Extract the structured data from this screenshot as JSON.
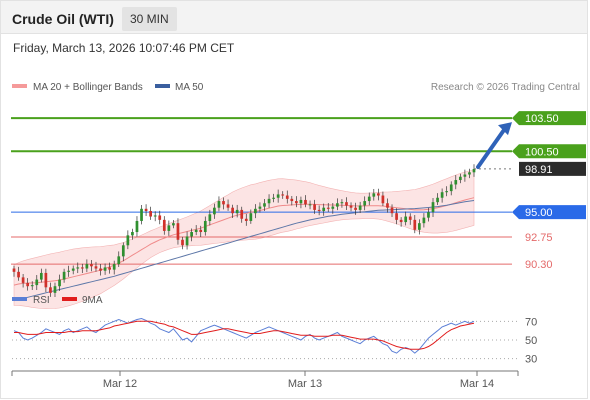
{
  "header": {
    "title": "Crude Oil (WTI)",
    "timeframe": "30 MIN"
  },
  "datetime": "Friday, March 13, 2026 10:07:46 PM CET",
  "legend": {
    "items": [
      {
        "label": "MA 20 + Bollinger Bands",
        "color": "#f59a9a"
      },
      {
        "label": "MA 50",
        "color": "#3a5f9f"
      }
    ],
    "source": "Research © 2026 Trading Central"
  },
  "rsi_legend": {
    "items": [
      {
        "label": "RSI",
        "color": "#5b7fd6"
      },
      {
        "label": "9MA",
        "color": "#e11d1d"
      }
    ]
  },
  "colors": {
    "resistance": "#4aa11c",
    "pivot": "#2a6ae8",
    "support": "#e46a6a",
    "arrow": "#2f62b8",
    "price_tag": "#2b2b2b",
    "candle_up": "#2f8f2f",
    "candle_down": "#d0302a"
  },
  "chart_data": [
    {
      "type": "candlestick",
      "price_range": [
        88.5,
        105.5
      ],
      "x_ticks": [
        "Mar 12",
        "Mar 13",
        "Mar 14"
      ],
      "levels": [
        {
          "label": "103.50",
          "value": 103.5,
          "kind": "resistance"
        },
        {
          "label": "100.50",
          "value": 100.5,
          "kind": "resistance"
        },
        {
          "label": "95.00",
          "value": 95.0,
          "kind": "pivot"
        },
        {
          "label": "92.75",
          "value": 92.75,
          "kind": "support"
        },
        {
          "label": "90.30",
          "value": 90.3,
          "kind": "support"
        }
      ],
      "last_price": {
        "label": "98.91",
        "value": 98.91
      },
      "close": [
        89.6,
        89.1,
        88.6,
        88.3,
        88.4,
        88.9,
        89.5,
        88.2,
        87.7,
        88.3,
        88.9,
        89.6,
        89.7,
        89.9,
        90.0,
        89.9,
        90.3,
        90.1,
        89.9,
        89.7,
        90.0,
        89.8,
        90.3,
        91.0,
        92.0,
        92.9,
        93.2,
        94.2,
        95.3,
        95.1,
        94.6,
        94.7,
        94.3,
        93.3,
        93.8,
        94.0,
        92.5,
        92.0,
        92.8,
        93.2,
        93.4,
        93.2,
        94.2,
        94.8,
        95.4,
        96.0,
        95.7,
        95.4,
        94.9,
        95.2,
        94.4,
        94.2,
        94.9,
        95.3,
        95.5,
        95.8,
        96.2,
        96.3,
        96.6,
        96.5,
        96.2,
        96.0,
        95.8,
        96.1,
        95.7,
        95.7,
        95.2,
        95.1,
        95.4,
        95.3,
        95.5,
        95.8,
        95.9,
        95.6,
        95.4,
        95.2,
        95.6,
        96.0,
        96.4,
        96.7,
        96.5,
        95.8,
        95.4,
        94.9,
        94.3,
        94.1,
        94.6,
        94.3,
        93.4,
        94.0,
        94.5,
        95.0,
        95.9,
        96.3,
        96.8,
        96.9,
        97.5,
        97.9,
        98.2,
        98.4,
        98.6,
        98.9
      ],
      "ma20": [
        88.4,
        88.5,
        88.55,
        88.58,
        88.6,
        88.62,
        88.65,
        88.7,
        88.75,
        88.8,
        88.85,
        88.95,
        89.05,
        89.15,
        89.25,
        89.35,
        89.45,
        89.55,
        89.65,
        89.75,
        89.9,
        90.05,
        90.2,
        90.4,
        90.6,
        90.85,
        91.1,
        91.35,
        91.6,
        91.85,
        92.1,
        92.3,
        92.5,
        92.65,
        92.8,
        92.95,
        93.05,
        93.15,
        93.25,
        93.35,
        93.45,
        93.55,
        93.7,
        93.85,
        94.0,
        94.15,
        94.3,
        94.45,
        94.6,
        94.72,
        94.82,
        94.9,
        95.0,
        95.05,
        95.15,
        95.25,
        95.35,
        95.45,
        95.55,
        95.6,
        95.62,
        95.65,
        95.68,
        95.7,
        95.72,
        95.72,
        95.7,
        95.68,
        95.66,
        95.65,
        95.64,
        95.63,
        95.62,
        95.6,
        95.58,
        95.56,
        95.55,
        95.56,
        95.57,
        95.58,
        95.58,
        95.55,
        95.5,
        95.45,
        95.4,
        95.35,
        95.3,
        95.25,
        95.2,
        95.2,
        95.22,
        95.26,
        95.32,
        95.4,
        95.5,
        95.6,
        95.72,
        95.85,
        95.98,
        96.1,
        96.2,
        96.3
      ],
      "ma50": [
        87.0,
        87.1,
        87.2,
        87.3,
        87.4,
        87.5,
        87.6,
        87.7,
        87.8,
        87.9,
        88.0,
        88.1,
        88.2,
        88.3,
        88.4,
        88.5,
        88.6,
        88.7,
        88.8,
        88.9,
        89.0,
        89.1,
        89.2,
        89.32,
        89.44,
        89.56,
        89.68,
        89.8,
        89.92,
        90.04,
        90.16,
        90.28,
        90.4,
        90.52,
        90.64,
        90.76,
        90.88,
        91.0,
        91.12,
        91.24,
        91.36,
        91.48,
        91.6,
        91.72,
        91.84,
        91.96,
        92.08,
        92.2,
        92.32,
        92.44,
        92.56,
        92.68,
        92.8,
        92.92,
        93.04,
        93.16,
        93.28,
        93.4,
        93.52,
        93.64,
        93.76,
        93.88,
        94.0,
        94.1,
        94.2,
        94.3,
        94.38,
        94.46,
        94.54,
        94.62,
        94.68,
        94.74,
        94.8,
        94.86,
        94.9,
        94.95,
        95.0,
        95.04,
        95.08,
        95.12,
        95.16,
        95.18,
        95.2,
        95.22,
        95.24,
        95.26,
        95.28,
        95.3,
        95.32,
        95.35,
        95.38,
        95.42,
        95.46,
        95.5,
        95.56,
        95.62,
        95.7,
        95.78,
        95.86,
        95.94,
        96.0,
        96.05
      ],
      "bollinger_width": 2.3
    },
    {
      "type": "line",
      "ylim": [
        20,
        80
      ],
      "y_ticks": [
        70,
        50,
        30
      ],
      "series": [
        {
          "name": "RSI",
          "values": [
            60,
            58,
            52,
            50,
            52,
            55,
            58,
            62,
            60,
            58,
            56,
            60,
            62,
            58,
            60,
            62,
            64,
            60,
            58,
            62,
            66,
            68,
            70,
            72,
            70,
            68,
            70,
            72,
            73,
            71,
            68,
            66,
            62,
            60,
            58,
            62,
            56,
            50,
            52,
            48,
            54,
            60,
            62,
            64,
            66,
            64,
            62,
            60,
            58,
            56,
            54,
            52,
            55,
            58,
            60,
            62,
            64,
            62,
            60,
            58,
            56,
            54,
            52,
            50,
            54,
            56,
            52,
            50,
            52,
            54,
            56,
            58,
            54,
            52,
            50,
            48,
            46,
            50,
            52,
            54,
            50,
            46,
            44,
            38,
            36,
            40,
            42,
            40,
            36,
            40,
            46,
            52,
            56,
            60,
            64,
            66,
            68,
            66,
            68,
            70,
            68,
            70
          ]
        },
        {
          "name": "9MA",
          "values": [
            58,
            58,
            57,
            56,
            56,
            56,
            57,
            58,
            58,
            58,
            58,
            58,
            59,
            59,
            59,
            60,
            60,
            60,
            60,
            61,
            62,
            63,
            65,
            66,
            67,
            68,
            69,
            70,
            70,
            70,
            70,
            69,
            68,
            67,
            65,
            64,
            62,
            60,
            58,
            56,
            56,
            57,
            58,
            59,
            60,
            61,
            62,
            62,
            61,
            60,
            59,
            58,
            57,
            57,
            57,
            58,
            59,
            60,
            60,
            59,
            58,
            57,
            56,
            55,
            55,
            55,
            54,
            54,
            54,
            54,
            55,
            55,
            55,
            54,
            53,
            52,
            51,
            51,
            51,
            51,
            50,
            49,
            47,
            45,
            43,
            42,
            41,
            40,
            40,
            40,
            41,
            43,
            46,
            50,
            54,
            58,
            61,
            63,
            65,
            66,
            67,
            68
          ]
        }
      ]
    }
  ]
}
